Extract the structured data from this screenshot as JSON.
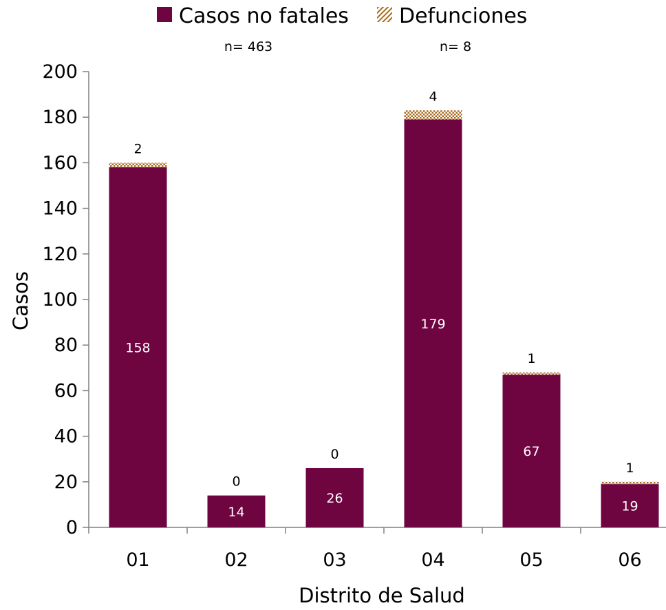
{
  "chart_data": {
    "type": "bar",
    "stacked": true,
    "categories": [
      "01",
      "02",
      "03",
      "04",
      "05",
      "06"
    ],
    "series": [
      {
        "name": "Casos no fatales",
        "values": [
          158,
          14,
          26,
          179,
          67,
          19
        ],
        "color": "#6e0440",
        "pattern": "solid"
      },
      {
        "name": "Defunciones",
        "values": [
          2,
          0,
          0,
          4,
          1,
          1
        ],
        "color": "#a86a1c",
        "pattern": "hatched"
      }
    ],
    "totals": [
      "n= 463",
      "n= 8"
    ],
    "xlabel": "Distrito de Salud",
    "ylabel": "Casos",
    "ylim": [
      0,
      200
    ],
    "yticks": [
      0,
      20,
      40,
      60,
      80,
      100,
      120,
      140,
      160,
      180,
      200
    ],
    "grid": false,
    "legend_position": "top-center"
  }
}
